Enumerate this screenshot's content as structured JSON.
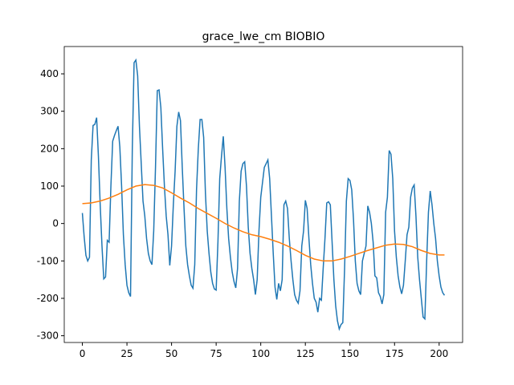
{
  "chart_data": {
    "type": "line",
    "title": "grace_lwe_cm BIOBIO",
    "xlim": [
      -10.15,
      213.15
    ],
    "ylim": [
      -318,
      473
    ],
    "xticks": [
      0,
      25,
      50,
      75,
      100,
      125,
      150,
      175,
      200
    ],
    "yticks": [
      -300,
      -200,
      -100,
      0,
      100,
      200,
      300,
      400
    ],
    "series": [
      {
        "color": "#1f77b4",
        "x": [
          0,
          1,
          2,
          3,
          4,
          5,
          6,
          7,
          8,
          9,
          10,
          11,
          12,
          13,
          14,
          15,
          16,
          17,
          18,
          19,
          20,
          21,
          22,
          23,
          24,
          25,
          26,
          27,
          28,
          29,
          30,
          31,
          32,
          33,
          34,
          35,
          36,
          37,
          38,
          39,
          40,
          41,
          42,
          43,
          44,
          45,
          46,
          47,
          48,
          49,
          50,
          51,
          52,
          53,
          54,
          55,
          56,
          57,
          58,
          59,
          60,
          61,
          62,
          63,
          64,
          65,
          66,
          67,
          68,
          69,
          70,
          71,
          72,
          73,
          74,
          75,
          76,
          77,
          78,
          79,
          80,
          81,
          82,
          83,
          84,
          85,
          86,
          87,
          88,
          89,
          90,
          91,
          92,
          93,
          94,
          95,
          96,
          97,
          98,
          99,
          100,
          101,
          102,
          103,
          104,
          105,
          106,
          107,
          108,
          109,
          110,
          111,
          112,
          113,
          114,
          115,
          116,
          117,
          118,
          119,
          120,
          121,
          122,
          123,
          124,
          125,
          126,
          127,
          128,
          129,
          130,
          131,
          132,
          133,
          134,
          135,
          136,
          137,
          138,
          139,
          140,
          141,
          142,
          143,
          144,
          145,
          146,
          147,
          148,
          149,
          150,
          151,
          152,
          153,
          154,
          155,
          156,
          157,
          158,
          159,
          160,
          161,
          162,
          163,
          164,
          165,
          166,
          167,
          168,
          169,
          170,
          171,
          172,
          173,
          174,
          175,
          176,
          177,
          178,
          179,
          180,
          181,
          182,
          183,
          184,
          185,
          186,
          187,
          188,
          189,
          190,
          191,
          192,
          193,
          194,
          195,
          196,
          197,
          198,
          199,
          200,
          201,
          202,
          203
        ],
        "values": [
          28,
          -35,
          -85,
          -100,
          -90,
          170,
          262,
          265,
          283,
          180,
          50,
          -60,
          -148,
          -143,
          -45,
          -50,
          100,
          220,
          235,
          248,
          260,
          205,
          100,
          -30,
          -110,
          -165,
          -185,
          -195,
          200,
          430,
          437,
          395,
          260,
          160,
          60,
          20,
          -40,
          -80,
          -100,
          -110,
          -20,
          150,
          355,
          357,
          310,
          200,
          100,
          20,
          -30,
          -112,
          -60,
          50,
          140,
          260,
          298,
          275,
          150,
          40,
          -60,
          -110,
          -140,
          -165,
          -173,
          -110,
          90,
          200,
          278,
          278,
          230,
          80,
          -20,
          -80,
          -130,
          -160,
          -175,
          -178,
          -50,
          120,
          180,
          233,
          150,
          40,
          -40,
          -90,
          -130,
          -155,
          -172,
          -120,
          60,
          140,
          160,
          165,
          100,
          -10,
          -80,
          -120,
          -150,
          -190,
          -150,
          -20,
          70,
          110,
          150,
          160,
          170,
          120,
          20,
          -80,
          -170,
          -203,
          -160,
          -180,
          -150,
          50,
          60,
          40,
          -40,
          -100,
          -150,
          -190,
          -205,
          -213,
          -180,
          -60,
          -20,
          62,
          40,
          -40,
          -110,
          -160,
          -200,
          -210,
          -237,
          -200,
          -205,
          -120,
          -40,
          55,
          58,
          50,
          -50,
          -150,
          -220,
          -260,
          -282,
          -270,
          -265,
          -120,
          60,
          120,
          115,
          90,
          10,
          -100,
          -160,
          -180,
          -190,
          -100,
          -80,
          -60,
          47,
          30,
          0,
          -50,
          -140,
          -145,
          -185,
          -195,
          -215,
          -190,
          30,
          70,
          195,
          185,
          120,
          -20,
          -90,
          -140,
          -170,
          -188,
          -165,
          -100,
          -30,
          -10,
          70,
          95,
          103,
          20,
          -90,
          -150,
          -200,
          -250,
          -255,
          -100,
          30,
          87,
          50,
          0,
          -40,
          -100,
          -140,
          -170,
          -185,
          -192
        ]
      },
      {
        "color": "#ff7f0e",
        "x": [
          0,
          5,
          10,
          15,
          20,
          25,
          30,
          35,
          40,
          45,
          50,
          55,
          60,
          65,
          70,
          75,
          80,
          85,
          90,
          95,
          100,
          105,
          110,
          115,
          120,
          125,
          130,
          135,
          140,
          145,
          150,
          155,
          160,
          165,
          170,
          175,
          180,
          185,
          190,
          195,
          200,
          203
        ],
        "values": [
          53,
          55,
          60,
          68,
          78,
          90,
          100,
          104,
          102,
          95,
          82,
          68,
          55,
          40,
          27,
          14,
          0,
          -12,
          -22,
          -30,
          -35,
          -42,
          -50,
          -60,
          -72,
          -85,
          -95,
          -100,
          -100,
          -95,
          -88,
          -80,
          -72,
          -65,
          -58,
          -55,
          -56,
          -62,
          -72,
          -80,
          -84,
          -84
        ]
      }
    ]
  }
}
